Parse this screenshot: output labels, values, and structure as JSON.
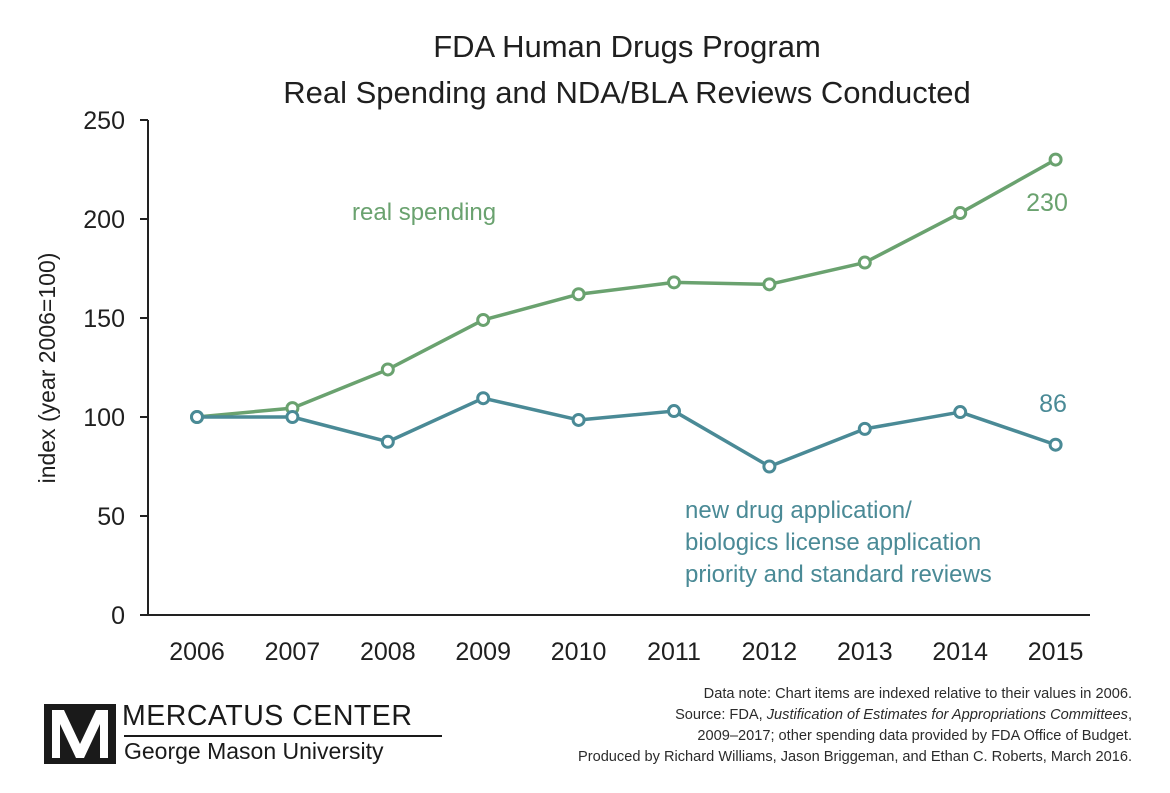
{
  "chart_data": {
    "type": "line",
    "title": [
      "FDA Human Drugs Program",
      "Real Spending and NDA/BLA Reviews Conducted"
    ],
    "ylabel": "index (year 2006=100)",
    "xlabel": "",
    "categories": [
      "2006",
      "2007",
      "2008",
      "2009",
      "2010",
      "2011",
      "2012",
      "2013",
      "2014",
      "2015"
    ],
    "ylim": [
      0,
      250
    ],
    "yticks": [
      0,
      50,
      100,
      150,
      200,
      250
    ],
    "grid": false,
    "series": [
      {
        "name": "real spending",
        "label_lines": [
          "real spending"
        ],
        "color": "#6aa26f",
        "values": [
          100,
          104.5,
          124,
          149,
          162,
          168,
          167,
          178,
          203,
          230
        ],
        "end_label": "230"
      },
      {
        "name": "new drug application/ biologics license application priority and standard reviews",
        "label_lines": [
          "new drug application/",
          "biologics license application",
          "priority and standard reviews"
        ],
        "color": "#4a8a96",
        "values": [
          100,
          100,
          87.5,
          109.5,
          98.5,
          103,
          75,
          94,
          102.5,
          86
        ],
        "end_label": "86"
      }
    ]
  },
  "notes": {
    "line1": "Data note: Chart items are indexed relative to their values in 2006.",
    "line2_prefix": "Source: FDA, ",
    "line2_italic": "Justification of Estimates for Appropriations Committees",
    "line2_suffix": ",",
    "line3": "2009–2017; other spending data provided by FDA Office of Budget.",
    "line4": "Produced by Richard Williams, Jason Briggeman, and Ethan C. Roberts, March 2016."
  },
  "logo": {
    "org": "MERCATUS CENTER",
    "university": "George Mason University",
    "mark": "mercatus-m-logo-icon"
  }
}
